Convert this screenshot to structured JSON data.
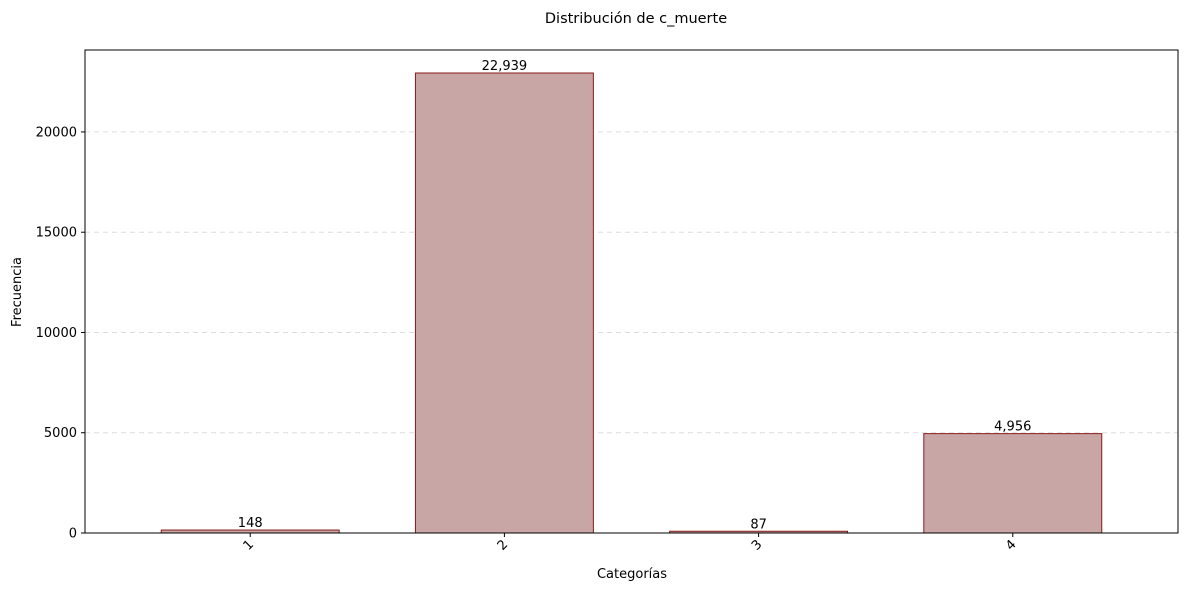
{
  "chart_data": {
    "type": "bar",
    "title": "Distribución de c_muerte",
    "xlabel": "Categorías",
    "ylabel": "Frecuencia",
    "categories": [
      "1",
      "2",
      "3",
      "4"
    ],
    "values": [
      148,
      22939,
      87,
      4956
    ],
    "value_labels": [
      "148",
      "22,939",
      "87",
      "4,956"
    ],
    "yticks": [
      0,
      5000,
      10000,
      15000,
      20000
    ],
    "ylim": [
      0,
      24086
    ],
    "x_tick_rotation_deg": 45,
    "grid": "y-dashed",
    "colors": {
      "bar_fill": "#c8a6a6",
      "bar_edge": "#8b1a1a",
      "grid": "#dddddd"
    }
  }
}
